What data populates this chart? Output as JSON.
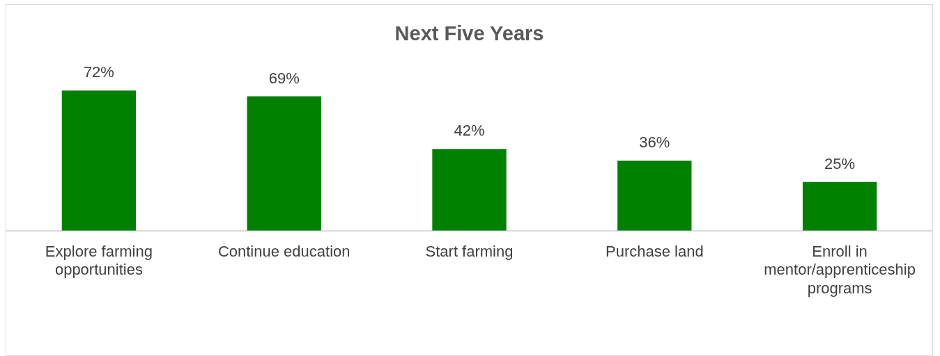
{
  "chart_data": {
    "type": "bar",
    "title": "Next Five Years",
    "categories": [
      "Explore farming opportunities",
      "Continue education",
      "Start farming",
      "Purchase land",
      "Enroll in mentor/apprenticeship programs"
    ],
    "values": [
      72,
      69,
      42,
      36,
      25
    ],
    "value_labels": [
      "72%",
      "69%",
      "42%",
      "36%",
      "25%"
    ],
    "color": "#008000"
  }
}
